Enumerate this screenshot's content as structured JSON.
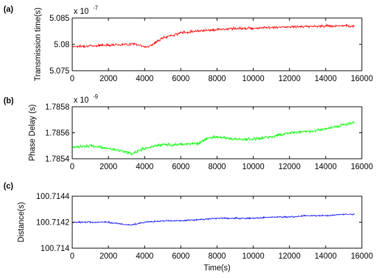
{
  "chart_data": [
    {
      "type": "line",
      "panel_label": "(a)",
      "ylabel": "Transmission time(s)",
      "multiplier": {
        "base": "x 10",
        "exponent": "-7"
      },
      "xlim": [
        0,
        16000
      ],
      "ylim": [
        5.075,
        5.085
      ],
      "xticks": [
        "0",
        "2000",
        "4000",
        "6000",
        "8000",
        "10000",
        "12000",
        "14000",
        "16000"
      ],
      "yticks": [
        "5.075",
        "5.08",
        "5.085"
      ],
      "color": "#ff0000",
      "noise": 0.00025,
      "series": [
        {
          "x": [
            0,
            1000,
            2000,
            3000,
            3500,
            4000,
            4300,
            5000,
            6000,
            7000,
            8000,
            9000,
            10000,
            11000,
            12000,
            13000,
            14000,
            15000,
            15600
          ],
          "y": [
            5.0796,
            5.0797,
            5.0799,
            5.08,
            5.0801,
            5.0795,
            5.0797,
            5.0812,
            5.0822,
            5.0826,
            5.0828,
            5.083,
            5.0831,
            5.0832,
            5.0833,
            5.0834,
            5.0835,
            5.0835,
            5.0834
          ]
        }
      ]
    },
    {
      "type": "line",
      "panel_label": "(b)",
      "ylabel": "Phase Delay (s)",
      "multiplier": {
        "base": "x 10",
        "exponent": "-9"
      },
      "xlim": [
        0,
        16000
      ],
      "ylim": [
        1.7854,
        1.7858
      ],
      "xticks": [
        "0",
        "2000",
        "4000",
        "6000",
        "8000",
        "10000",
        "12000",
        "14000",
        "16000"
      ],
      "yticks": [
        "1.7854",
        "1.7856",
        "1.7858"
      ],
      "color": "#00ff00",
      "noise": 1.2e-05,
      "series": [
        {
          "x": [
            0,
            1000,
            2000,
            3000,
            3300,
            4000,
            5000,
            6000,
            7000,
            7500,
            8000,
            9000,
            10000,
            11000,
            12000,
            13000,
            14000,
            15000,
            15600
          ],
          "y": [
            1.78549,
            1.7855,
            1.78548,
            1.78545,
            1.78544,
            1.78548,
            1.78551,
            1.78551,
            1.78552,
            1.78556,
            1.78557,
            1.78555,
            1.78555,
            1.78557,
            1.7856,
            1.78561,
            1.78563,
            1.78566,
            1.78568
          ]
        }
      ]
    },
    {
      "type": "line",
      "panel_label": "(c)",
      "ylabel": "Distance(s)",
      "xlabel": "Time(s)",
      "xlim": [
        0,
        16000
      ],
      "ylim": [
        100.714,
        100.7144
      ],
      "xticks": [
        "0",
        "2000",
        "4000",
        "6000",
        "8000",
        "10000",
        "12000",
        "14000",
        "16000"
      ],
      "yticks": [
        "100.714",
        "100.7142",
        "100.7144"
      ],
      "color": "#0000ff",
      "noise": 5.5e-06,
      "series": [
        {
          "x": [
            0,
            1000,
            2000,
            3000,
            3300,
            4000,
            5000,
            6000,
            7000,
            8000,
            9000,
            10000,
            11000,
            12000,
            13000,
            14000,
            15000,
            15600
          ],
          "y": [
            100.7142,
            100.7142,
            100.7142,
            100.71418,
            100.71418,
            100.7142,
            100.71421,
            100.71421,
            100.71422,
            100.71423,
            100.71423,
            100.71423,
            100.71424,
            100.71424,
            100.71425,
            100.71425,
            100.71426,
            100.71426
          ]
        }
      ]
    }
  ]
}
